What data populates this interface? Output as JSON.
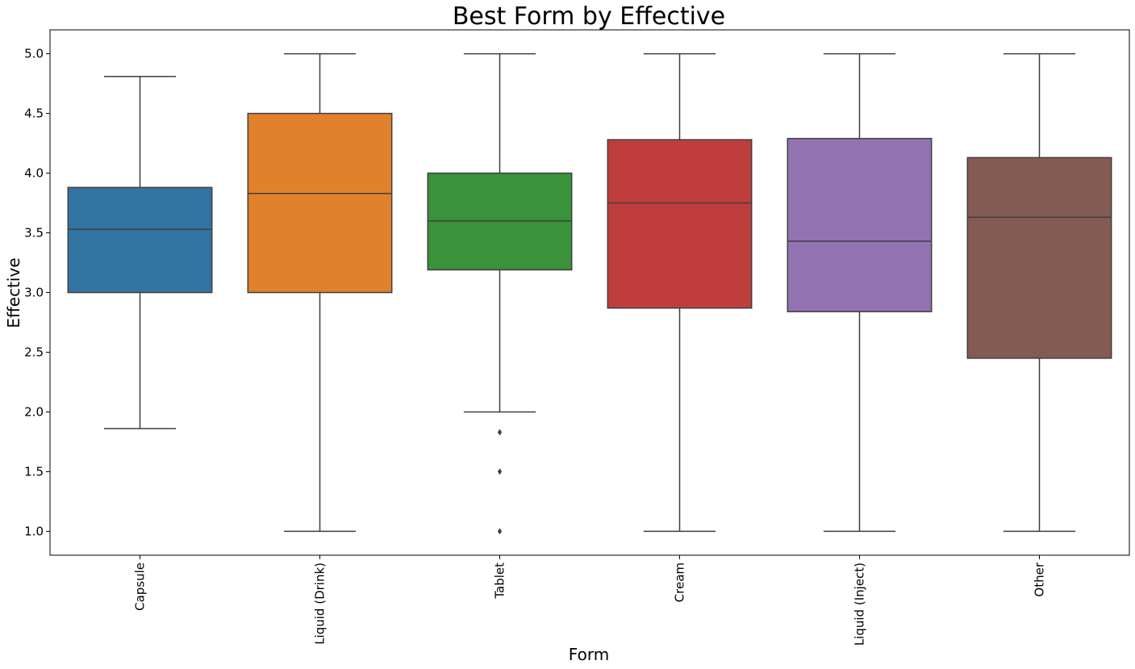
{
  "chart_data": {
    "type": "box",
    "title": "Best Form by Effective",
    "xlabel": "Form",
    "ylabel": "Effective",
    "ylim": [
      0.8,
      5.2
    ],
    "yticks": [
      "1.0",
      "1.5",
      "2.0",
      "2.5",
      "3.0",
      "3.5",
      "4.0",
      "4.5",
      "5.0"
    ],
    "grid": false,
    "categories": [
      "Capsule",
      "Liquid (Drink)",
      "Tablet",
      "Cream",
      "Liquid (Inject)",
      "Other"
    ],
    "boxes": [
      {
        "category": "Capsule",
        "whisker_low": 1.86,
        "q1": 3.0,
        "median": 3.53,
        "q3": 3.88,
        "whisker_high": 4.81,
        "outliers": [],
        "color": "#3274a1"
      },
      {
        "category": "Liquid (Drink)",
        "whisker_low": 1.0,
        "q1": 3.0,
        "median": 3.83,
        "q3": 4.5,
        "whisker_high": 5.0,
        "outliers": [],
        "color": "#e1812c"
      },
      {
        "category": "Tablet",
        "whisker_low": 2.0,
        "q1": 3.19,
        "median": 3.6,
        "q3": 4.0,
        "whisker_high": 5.0,
        "outliers": [
          1.83,
          1.5,
          1.0
        ],
        "color": "#3a923a"
      },
      {
        "category": "Cream",
        "whisker_low": 1.0,
        "q1": 2.87,
        "median": 3.75,
        "q3": 4.28,
        "whisker_high": 5.0,
        "outliers": [],
        "color": "#c03d3e"
      },
      {
        "category": "Liquid (Inject)",
        "whisker_low": 1.0,
        "q1": 2.84,
        "median": 3.43,
        "q3": 4.29,
        "whisker_high": 5.0,
        "outliers": [],
        "color": "#9372b2"
      },
      {
        "category": "Other",
        "whisker_low": 1.0,
        "q1": 2.45,
        "median": 3.63,
        "q3": 4.13,
        "whisker_high": 5.0,
        "outliers": [],
        "color": "#845b53"
      }
    ],
    "line_color": "#3f3f3f"
  }
}
